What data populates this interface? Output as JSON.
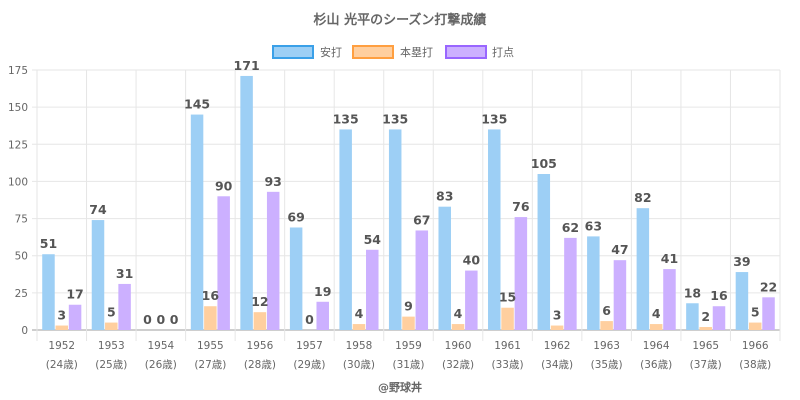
{
  "chart_data": {
    "type": "bar",
    "title": "杉山 光平のシーズン打撃成績",
    "xlabel": "",
    "ylabel": "",
    "ylim": [
      0,
      175
    ],
    "yticks": [
      0,
      25,
      50,
      75,
      100,
      125,
      150,
      175
    ],
    "grid": true,
    "legend_position": "top-center",
    "categories": [
      "1952",
      "1953",
      "1954",
      "1955",
      "1956",
      "1957",
      "1958",
      "1959",
      "1960",
      "1961",
      "1962",
      "1963",
      "1964",
      "1965",
      "1966"
    ],
    "category_sublabels": [
      "(24歳)",
      "(25歳)",
      "(26歳)",
      "(27歳)",
      "(28歳)",
      "(29歳)",
      "(30歳)",
      "(31歳)",
      "(32歳)",
      "(33歳)",
      "(34歳)",
      "(35歳)",
      "(36歳)",
      "(37歳)",
      "(38歳)"
    ],
    "series": [
      {
        "name": "安打",
        "fill": "#9dcff5",
        "stroke": "#3aa0e8",
        "values": [
          51,
          74,
          0,
          145,
          171,
          69,
          135,
          135,
          83,
          135,
          105,
          63,
          82,
          18,
          39
        ]
      },
      {
        "name": "本塁打",
        "fill": "#ffcf9f",
        "stroke": "#ff9f40",
        "values": [
          3,
          5,
          0,
          16,
          12,
          0,
          4,
          9,
          4,
          15,
          3,
          6,
          4,
          2,
          5
        ]
      },
      {
        "name": "打点",
        "fill": "#ccb0ff",
        "stroke": "#9966ff",
        "values": [
          17,
          31,
          0,
          90,
          93,
          19,
          54,
          67,
          40,
          76,
          62,
          47,
          41,
          16,
          22
        ]
      }
    ]
  },
  "footer": "@野球丼"
}
